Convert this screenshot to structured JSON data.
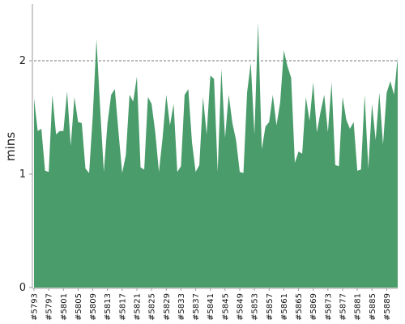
{
  "chart_data": {
    "type": "area",
    "title": "",
    "xlabel": "",
    "ylabel": "mins",
    "ylim": [
      0,
      2.5
    ],
    "yticks": [
      0,
      1,
      2
    ],
    "ytick_labels": [
      "0",
      "1",
      "2"
    ],
    "grid": "horizontal dashed at 1 and 2",
    "colors": {
      "fill": "#4a9c6b",
      "axis": "#999999",
      "grid": "#777777"
    },
    "tick_labels": [
      "#5793",
      "#5797",
      "#5801",
      "#5805",
      "#5809",
      "#5813",
      "#5817",
      "#5821",
      "#5825",
      "#5829",
      "#5833",
      "#5837",
      "#5841",
      "#5845",
      "#5849",
      "#5853",
      "#5857",
      "#5861",
      "#5865",
      "#5869",
      "#5873",
      "#5877",
      "#5881",
      "#5885",
      "#5889"
    ],
    "x_start": 5793,
    "x_end": 5892,
    "values": [
      1.67,
      1.38,
      1.4,
      1.03,
      1.02,
      1.7,
      1.35,
      1.38,
      1.38,
      1.73,
      1.25,
      1.68,
      1.46,
      1.45,
      1.05,
      1.01,
      1.52,
      2.19,
      1.58,
      1.02,
      1.45,
      1.7,
      1.75,
      1.37,
      1.01,
      1.17,
      1.7,
      1.64,
      1.86,
      1.06,
      1.04,
      1.68,
      1.62,
      1.37,
      1.02,
      1.32,
      1.7,
      1.43,
      1.62,
      1.02,
      1.07,
      1.7,
      1.75,
      1.28,
      1.02,
      1.08,
      1.68,
      1.35,
      1.87,
      1.84,
      1.02,
      1.93,
      1.32,
      1.7,
      1.45,
      1.3,
      1.02,
      1.01,
      1.72,
      1.98,
      1.35,
      2.34,
      1.22,
      1.42,
      1.46,
      1.7,
      1.43,
      1.63,
      2.09,
      1.95,
      1.85,
      1.1,
      1.2,
      1.18,
      1.68,
      1.47,
      1.81,
      1.37,
      1.55,
      1.7,
      1.37,
      1.81,
      1.08,
      1.07,
      1.68,
      1.48,
      1.4,
      1.46,
      1.03,
      1.04,
      1.7,
      1.05,
      1.62,
      1.3,
      1.72,
      1.26,
      1.72,
      1.82,
      1.7,
      2.03
    ]
  }
}
